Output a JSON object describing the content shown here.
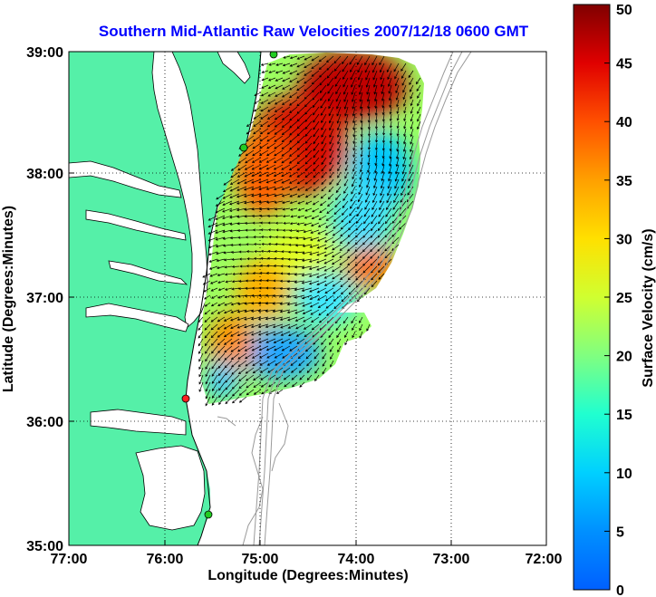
{
  "title": "Southern Mid-Atlantic Raw Velocities 2007/12/18 0600 GMT",
  "x_axis": {
    "label": "Longitude (Degrees:Minutes)",
    "ticks": [
      "77:00",
      "76:00",
      "75:00",
      "74:00",
      "73:00",
      "72:00"
    ]
  },
  "y_axis": {
    "label": "Latitude (Degrees:Minutes)",
    "ticks": [
      "39:00",
      "38:00",
      "37:00",
      "36:00",
      "35:00"
    ]
  },
  "colorbar": {
    "label": "Surface Velocity (cm/s)",
    "ticks": [
      "50",
      "45",
      "40",
      "35",
      "30",
      "25",
      "20",
      "15",
      "10",
      "5",
      "0"
    ],
    "min": 0,
    "max": 50
  },
  "colors": {
    "land": "#55f0a8",
    "water": "#ffffff",
    "title": "#0000ff",
    "bathymetry": "#9a9a9a",
    "station_green": "#22cc22",
    "station_red": "#ff2020"
  },
  "icons": [
    "station-marker",
    "velocity-arrow"
  ]
}
